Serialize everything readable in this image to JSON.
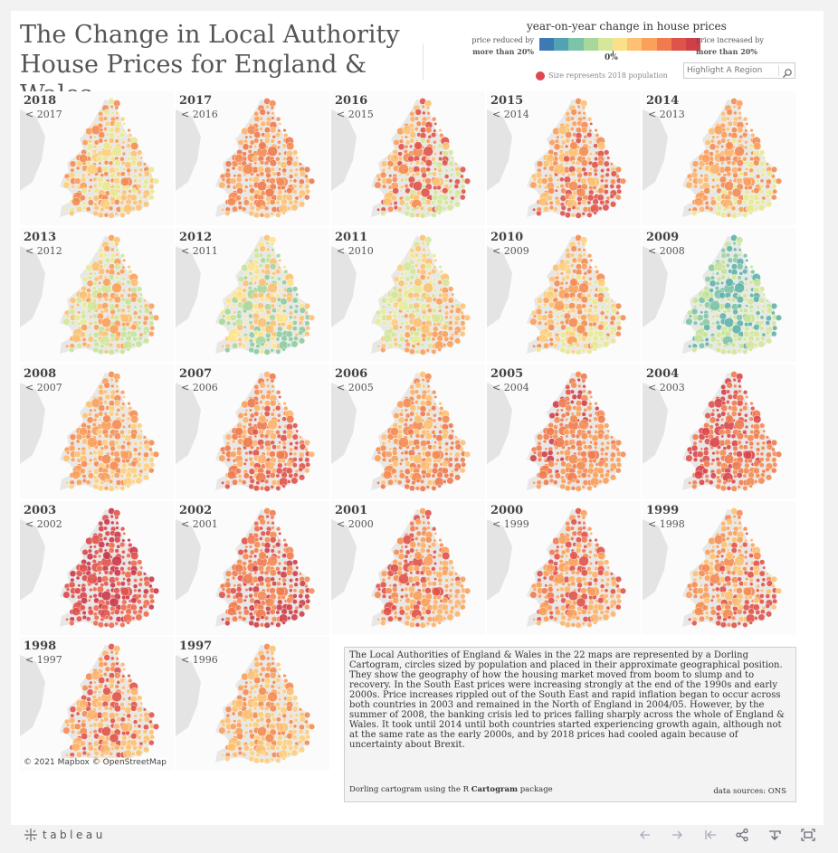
{
  "header": {
    "title_line1": "The Change in Local Authority",
    "title_line2": "House Prices for England & Wales"
  },
  "legend": {
    "title": "year-on-year change in house prices",
    "left_line1": "price reduced by",
    "left_line2": "more than 20%",
    "right_line1": "price increased by",
    "right_line2": "more than 20%",
    "zero": "0%",
    "size_note": "Size represents 2018 population",
    "colors": [
      "#3d7ab5",
      "#52a2b3",
      "#7cc3a8",
      "#a7d79a",
      "#d5e79b",
      "#fbe08a",
      "#fcc173",
      "#f9a05b",
      "#f07b4f",
      "#e0534b",
      "#cf3f4a"
    ]
  },
  "search": {
    "placeholder": "Highlight A Region"
  },
  "maps": [
    {
      "year": "2018",
      "prev": "< 2017",
      "palette": [
        "#fdb46d",
        "#f9a05b",
        "#fdcf7d",
        "#f48c53",
        "#e9e994",
        "#fcc173"
      ]
    },
    {
      "year": "2017",
      "prev": "< 2016",
      "palette": [
        "#f9a05b",
        "#fdb46d",
        "#f48c53",
        "#ee7a4e",
        "#fcc173"
      ]
    },
    {
      "year": "2016",
      "prev": "< 2015",
      "palette": [
        "#fdb46d",
        "#f9a05b",
        "#f48c53",
        "#fcc173",
        "#e0534b",
        "#d5e79b"
      ]
    },
    {
      "year": "2015",
      "prev": "< 2014",
      "palette": [
        "#fdb46d",
        "#f9a05b",
        "#fcc173",
        "#f48c53",
        "#e0534b"
      ]
    },
    {
      "year": "2014",
      "prev": "< 2013",
      "palette": [
        "#fdcf7d",
        "#fcc173",
        "#fdb46d",
        "#f9a05b",
        "#f48c53",
        "#e9e994"
      ]
    },
    {
      "year": "2013",
      "prev": "< 2012",
      "palette": [
        "#fde38c",
        "#e8ec9a",
        "#d5e79b",
        "#fcc173",
        "#f9a05b",
        "#c7e39a"
      ]
    },
    {
      "year": "2012",
      "prev": "< 2011",
      "palette": [
        "#d5e79b",
        "#c7e39a",
        "#a7d79a",
        "#fde38c",
        "#fcc173",
        "#8dcca0"
      ]
    },
    {
      "year": "2011",
      "prev": "< 2010",
      "palette": [
        "#fde38c",
        "#fcd07e",
        "#e8ec9a",
        "#d5e79b",
        "#fcc173",
        "#f9a05b"
      ]
    },
    {
      "year": "2010",
      "prev": "< 2009",
      "palette": [
        "#fdb46d",
        "#fcc173",
        "#f9a05b",
        "#fdcf7d",
        "#f48c53",
        "#e9e994"
      ]
    },
    {
      "year": "2009",
      "prev": "< 2008",
      "palette": [
        "#a7d79a",
        "#8dcca0",
        "#7cc3a8",
        "#c7e39a",
        "#5fb3aa",
        "#d5e79b"
      ]
    },
    {
      "year": "2008",
      "prev": "< 2007",
      "palette": [
        "#fdb46d",
        "#fcc173",
        "#f9a05b",
        "#f48c53",
        "#fdcf7d"
      ]
    },
    {
      "year": "2007",
      "prev": "< 2006",
      "palette": [
        "#f48c53",
        "#f9a05b",
        "#ee7a4e",
        "#fdb46d",
        "#e0534b"
      ]
    },
    {
      "year": "2006",
      "prev": "< 2005",
      "palette": [
        "#fdb46d",
        "#f9a05b",
        "#f48c53",
        "#fcc173",
        "#ee7a4e"
      ]
    },
    {
      "year": "2005",
      "prev": "< 2004",
      "palette": [
        "#e0534b",
        "#cf3f4a",
        "#f07b4f",
        "#f48c53",
        "#f9a05b"
      ]
    },
    {
      "year": "2004",
      "prev": "< 2003",
      "palette": [
        "#cf3f4a",
        "#e0534b",
        "#d9474c",
        "#f07b4f",
        "#f48c53"
      ]
    },
    {
      "year": "2003",
      "prev": "< 2002",
      "palette": [
        "#cf3f4a",
        "#d9474c",
        "#e0534b",
        "#c9394a",
        "#ee6a4e"
      ]
    },
    {
      "year": "2002",
      "prev": "< 2001",
      "palette": [
        "#ee6a4e",
        "#e0534b",
        "#f07b4f",
        "#f48c53",
        "#cf3f4a"
      ]
    },
    {
      "year": "2001",
      "prev": "< 2000",
      "palette": [
        "#f07b4f",
        "#f48c53",
        "#e0534b",
        "#f9a05b",
        "#fdb46d"
      ]
    },
    {
      "year": "2000",
      "prev": "< 1999",
      "palette": [
        "#f48c53",
        "#f07b4f",
        "#f9a05b",
        "#e0534b",
        "#fdb46d"
      ]
    },
    {
      "year": "1999",
      "prev": "< 1998",
      "palette": [
        "#fdb46d",
        "#f9a05b",
        "#f48c53",
        "#fcc173",
        "#e0534b"
      ]
    },
    {
      "year": "1998",
      "prev": "< 1997",
      "palette": [
        "#f9a05b",
        "#f48c53",
        "#fdb46d",
        "#e0534b",
        "#fcc173"
      ]
    },
    {
      "year": "1997",
      "prev": "< 1996",
      "palette": [
        "#fdb46d",
        "#f9a05b",
        "#fcc173",
        "#f48c53",
        "#fdcf7d"
      ]
    }
  ],
  "attribution": "© 2021 Mapbox  © OpenStreetMap",
  "description": "The Local Authorities of England & Wales in the 22 maps are represented by a Dorling Cartogram, circles sized by population and placed in their approximate geographical position. They show the geography of how the housing market moved from boom to slump and to recovery. In the South East prices were increasing strongly at the end of the 1990s and early 2000s. Price increases rippled out of the South East and rapid inflation began to occur across both countries in 2003 and remained in the North of England in 2004/05. However, by the summer of 2008, the banking crisis led to prices falling sharply across the whole of England & Wales. It took until 2014 until both countries started experiencing growth again, although not at the same rate as the early 2000s, and by 2018 prices had cooled again because of uncertainty about Brexit.",
  "footer": {
    "credit_prefix": "Dorling cartogram using the R ",
    "credit_package": "Cartogram",
    "credit_suffix": " package",
    "sources": "data sources: ONS"
  },
  "toolbar": {
    "brand": "tableau"
  }
}
